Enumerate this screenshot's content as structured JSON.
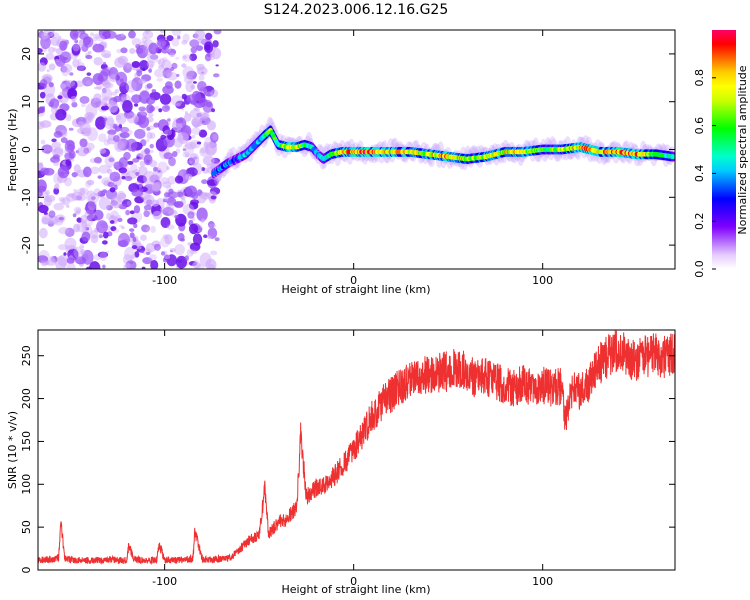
{
  "page_title": "S124.2023.006.12.16.G25",
  "colors": {
    "snr_line": "#ee3030",
    "cloud": "#8a3cf0",
    "colormap": [
      "#ffffff",
      "#e6ccff",
      "#b266ff",
      "#7f00ff",
      "#3f00ff",
      "#0000ff",
      "#0066ff",
      "#00ccff",
      "#00ffcc",
      "#00ff66",
      "#00ff00",
      "#66ff00",
      "#ccff00",
      "#ffff00",
      "#ffcc00",
      "#ff6600",
      "#ff0000",
      "#ff0066"
    ]
  },
  "chart_data": [
    {
      "type": "heatmap",
      "title": "S124.2023.006.12.16.G25",
      "xlabel": "Height of straight line (km)",
      "ylabel": "Frequency (Hz)",
      "xlim": [
        -167,
        170
      ],
      "ylim": [
        -25,
        25
      ],
      "xticks": [
        -100,
        0,
        100
      ],
      "xtick_labels": [
        "-100",
        "0",
        "100"
      ],
      "yticks": [
        -20,
        -10,
        0,
        10,
        20
      ],
      "ytick_labels": [
        "-20",
        "-10",
        "0",
        "10",
        "20"
      ],
      "noise_region_x": [
        -167,
        -72
      ],
      "ridge": {
        "x": [
          -74,
          -67,
          -62,
          -57,
          -52,
          -47,
          -44,
          -40,
          -35,
          -30,
          -26,
          -22,
          -19,
          -16,
          -12,
          -6,
          0,
          10,
          20,
          30,
          40,
          50,
          60,
          70,
          80,
          90,
          100,
          110,
          120,
          130,
          140,
          150,
          160,
          169
        ],
        "y": [
          -5,
          -3,
          -2,
          -1,
          1,
          3,
          4,
          1,
          0.5,
          0.5,
          1,
          0.5,
          -1,
          -2,
          -1,
          -0.5,
          -0.5,
          -0.5,
          -0.5,
          -0.5,
          -1,
          -1.5,
          -2,
          -1.5,
          -0.5,
          -0.5,
          0,
          0,
          0.5,
          -0.5,
          -0.5,
          -1,
          -1,
          -1.5
        ],
        "amplitude": [
          0.35,
          0.4,
          0.3,
          0.45,
          0.4,
          0.55,
          0.7,
          0.5,
          0.85,
          0.8,
          0.55,
          0.5,
          0.35,
          0.45,
          0.6,
          0.8,
          0.95,
          0.9,
          0.85,
          0.8,
          0.75,
          0.9,
          0.7,
          0.75,
          0.8,
          0.85,
          0.6,
          0.7,
          0.9,
          0.85,
          0.95,
          0.9,
          0.6,
          0.5
        ]
      },
      "colorbar": {
        "label": "Normalized spectral amplitude",
        "range": [
          0,
          1
        ],
        "ticks": [
          0.0,
          0.2,
          0.4,
          0.6,
          0.8
        ],
        "tick_labels": [
          "0.0",
          "0.2",
          "0.4",
          "0.6",
          "0.8"
        ]
      }
    },
    {
      "type": "line",
      "xlabel": "Height of straight line (km)",
      "ylabel": "SNR (10 * v/v)",
      "xlim": [
        -167,
        170
      ],
      "ylim": [
        0,
        280
      ],
      "xticks": [
        -100,
        0,
        100
      ],
      "xtick_labels": [
        "-100",
        "0",
        "100"
      ],
      "yticks": [
        0,
        50,
        100,
        150,
        200,
        250
      ],
      "ytick_labels": [
        "0",
        "50",
        "100",
        "150",
        "200",
        "250"
      ],
      "series": [
        {
          "x": [
            -167,
            -160,
            -156,
            -155,
            -153,
            -150,
            -140,
            -130,
            -120,
            -119,
            -116,
            -110,
            -104,
            -103,
            -100,
            -95,
            -90,
            -85,
            -84,
            -80,
            -75,
            -70,
            -65,
            -60,
            -55,
            -50,
            -47,
            -45,
            -40,
            -35,
            -30,
            -28,
            -25,
            -20,
            -15,
            -10,
            -5,
            0,
            5,
            10,
            15,
            20,
            25,
            30,
            35,
            40,
            45,
            50,
            55,
            60,
            65,
            70,
            75,
            80,
            85,
            90,
            95,
            100,
            105,
            110,
            112,
            115,
            120,
            125,
            130,
            135,
            140,
            145,
            150,
            155,
            160,
            165,
            170
          ],
          "values": [
            12,
            12,
            15,
            60,
            14,
            12,
            11,
            12,
            11,
            28,
            12,
            11,
            12,
            30,
            12,
            11,
            12,
            13,
            45,
            12,
            12,
            13,
            15,
            25,
            35,
            40,
            95,
            42,
            55,
            60,
            75,
            160,
            85,
            95,
            100,
            110,
            125,
            140,
            160,
            180,
            195,
            205,
            215,
            220,
            225,
            228,
            230,
            232,
            235,
            230,
            222,
            225,
            220,
            215,
            212,
            218,
            210,
            215,
            212,
            215,
            175,
            210,
            208,
            220,
            240,
            250,
            258,
            248,
            245,
            250,
            252,
            248,
            255
          ]
        }
      ]
    }
  ]
}
